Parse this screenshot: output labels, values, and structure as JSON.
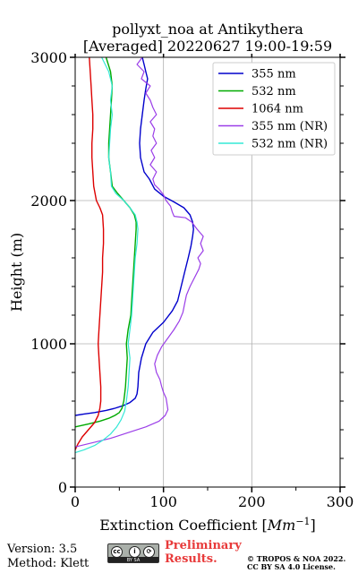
{
  "chart_data": {
    "type": "line",
    "title": [
      "pollyxt_noa at Antikythera",
      "[Averaged] 20220627 19:00-19:59"
    ],
    "xlabel": "Extinction Coefficient [",
    "xlabel_unit": "Mm",
    "xlabel_exp": "−1",
    "xlabel_end": "]",
    "ylabel": "Height (m)",
    "xlim": [
      0,
      300
    ],
    "ylim": [
      0,
      3000
    ],
    "xticks": [
      0,
      100,
      200,
      300
    ],
    "yticks": [
      0,
      1000,
      2000,
      3000
    ],
    "grid": true,
    "legend_position": "top-right",
    "series": [
      {
        "name": "355 nm",
        "color": "#0000cc",
        "width": 1.4,
        "points": [
          [
            0,
            500
          ],
          [
            10,
            510
          ],
          [
            22,
            520
          ],
          [
            35,
            535
          ],
          [
            45,
            550
          ],
          [
            55,
            570
          ],
          [
            62,
            590
          ],
          [
            68,
            620
          ],
          [
            70,
            650
          ],
          [
            71,
            700
          ],
          [
            72,
            800
          ],
          [
            75,
            900
          ],
          [
            80,
            1000
          ],
          [
            88,
            1080
          ],
          [
            100,
            1150
          ],
          [
            110,
            1230
          ],
          [
            116,
            1300
          ],
          [
            120,
            1400
          ],
          [
            124,
            1500
          ],
          [
            128,
            1600
          ],
          [
            131,
            1680
          ],
          [
            133,
            1750
          ],
          [
            134,
            1800
          ],
          [
            133,
            1850
          ],
          [
            130,
            1900
          ],
          [
            123,
            1950
          ],
          [
            112,
            1990
          ],
          [
            100,
            2030
          ],
          [
            90,
            2080
          ],
          [
            84,
            2150
          ],
          [
            78,
            2200
          ],
          [
            74,
            2300
          ],
          [
            73,
            2400
          ],
          [
            74,
            2500
          ],
          [
            76,
            2600
          ],
          [
            78,
            2700
          ],
          [
            80,
            2780
          ],
          [
            82,
            2850
          ],
          [
            80,
            2900
          ],
          [
            78,
            2950
          ],
          [
            76,
            3000
          ]
        ]
      },
      {
        "name": "532 nm",
        "color": "#00aa00",
        "width": 1.4,
        "points": [
          [
            0,
            420
          ],
          [
            15,
            440
          ],
          [
            28,
            460
          ],
          [
            38,
            480
          ],
          [
            45,
            500
          ],
          [
            50,
            520
          ],
          [
            53,
            550
          ],
          [
            55,
            600
          ],
          [
            56,
            650
          ],
          [
            57,
            700
          ],
          [
            58,
            800
          ],
          [
            59,
            900
          ],
          [
            58,
            1000
          ],
          [
            60,
            1100
          ],
          [
            63,
            1200
          ],
          [
            64,
            1300
          ],
          [
            65,
            1400
          ],
          [
            66,
            1500
          ],
          [
            67,
            1600
          ],
          [
            68,
            1700
          ],
          [
            69,
            1800
          ],
          [
            69,
            1850
          ],
          [
            67,
            1900
          ],
          [
            62,
            1950
          ],
          [
            55,
            2000
          ],
          [
            48,
            2050
          ],
          [
            42,
            2100
          ],
          [
            40,
            2200
          ],
          [
            38,
            2300
          ],
          [
            38,
            2400
          ],
          [
            39,
            2500
          ],
          [
            40,
            2600
          ],
          [
            41,
            2700
          ],
          [
            42,
            2800
          ],
          [
            40,
            2900
          ],
          [
            35,
            3000
          ]
        ]
      },
      {
        "name": "1064 nm",
        "color": "#dd0000",
        "width": 1.4,
        "points": [
          [
            0,
            260
          ],
          [
            3,
            300
          ],
          [
            8,
            350
          ],
          [
            15,
            400
          ],
          [
            22,
            450
          ],
          [
            26,
            500
          ],
          [
            28,
            550
          ],
          [
            29,
            600
          ],
          [
            29,
            700
          ],
          [
            28,
            800
          ],
          [
            27,
            900
          ],
          [
            26,
            1000
          ],
          [
            27,
            1100
          ],
          [
            28,
            1200
          ],
          [
            29,
            1300
          ],
          [
            30,
            1400
          ],
          [
            31,
            1500
          ],
          [
            31,
            1600
          ],
          [
            32,
            1700
          ],
          [
            32,
            1800
          ],
          [
            31,
            1900
          ],
          [
            28,
            1950
          ],
          [
            24,
            2000
          ],
          [
            21,
            2100
          ],
          [
            20,
            2200
          ],
          [
            19,
            2300
          ],
          [
            19,
            2400
          ],
          [
            20,
            2500
          ],
          [
            20,
            2600
          ],
          [
            19,
            2700
          ],
          [
            18,
            2800
          ],
          [
            17,
            2900
          ],
          [
            16,
            3000
          ]
        ]
      },
      {
        "name": "355 nm (NR)",
        "color": "#9b3ee8",
        "width": 1.2,
        "points": [
          [
            0,
            280
          ],
          [
            20,
            310
          ],
          [
            40,
            340
          ],
          [
            60,
            380
          ],
          [
            80,
            420
          ],
          [
            95,
            460
          ],
          [
            102,
            500
          ],
          [
            105,
            540
          ],
          [
            104,
            580
          ],
          [
            103,
            620
          ],
          [
            100,
            660
          ],
          [
            98,
            700
          ],
          [
            96,
            750
          ],
          [
            92,
            800
          ],
          [
            90,
            860
          ],
          [
            93,
            920
          ],
          [
            98,
            980
          ],
          [
            105,
            1040
          ],
          [
            112,
            1100
          ],
          [
            118,
            1160
          ],
          [
            122,
            1220
          ],
          [
            124,
            1280
          ],
          [
            126,
            1340
          ],
          [
            130,
            1400
          ],
          [
            135,
            1460
          ],
          [
            140,
            1520
          ],
          [
            142,
            1560
          ],
          [
            139,
            1600
          ],
          [
            145,
            1650
          ],
          [
            142,
            1700
          ],
          [
            145,
            1750
          ],
          [
            138,
            1800
          ],
          [
            132,
            1850
          ],
          [
            125,
            1880
          ],
          [
            112,
            1890
          ],
          [
            110,
            1920
          ],
          [
            108,
            1960
          ],
          [
            103,
            2000
          ],
          [
            100,
            2040
          ],
          [
            95,
            2080
          ],
          [
            90,
            2110
          ],
          [
            88,
            2150
          ],
          [
            92,
            2200
          ],
          [
            85,
            2250
          ],
          [
            90,
            2300
          ],
          [
            86,
            2350
          ],
          [
            92,
            2400
          ],
          [
            88,
            2450
          ],
          [
            90,
            2500
          ],
          [
            85,
            2550
          ],
          [
            92,
            2600
          ],
          [
            88,
            2650
          ],
          [
            85,
            2700
          ],
          [
            80,
            2750
          ],
          [
            85,
            2800
          ],
          [
            75,
            2850
          ],
          [
            78,
            2900
          ],
          [
            70,
            2950
          ],
          [
            76,
            3000
          ]
        ]
      },
      {
        "name": "532 nm (NR)",
        "color": "#33e8d6",
        "width": 1.2,
        "points": [
          [
            0,
            240
          ],
          [
            10,
            260
          ],
          [
            22,
            290
          ],
          [
            32,
            330
          ],
          [
            40,
            370
          ],
          [
            47,
            420
          ],
          [
            52,
            470
          ],
          [
            56,
            530
          ],
          [
            58,
            600
          ],
          [
            60,
            700
          ],
          [
            61,
            800
          ],
          [
            62,
            900
          ],
          [
            60,
            1000
          ],
          [
            62,
            1100
          ],
          [
            64,
            1200
          ],
          [
            65,
            1300
          ],
          [
            66,
            1400
          ],
          [
            67,
            1500
          ],
          [
            68,
            1600
          ],
          [
            70,
            1700
          ],
          [
            71,
            1800
          ],
          [
            70,
            1850
          ],
          [
            68,
            1900
          ],
          [
            62,
            1950
          ],
          [
            55,
            2000
          ],
          [
            46,
            2050
          ],
          [
            41,
            2100
          ],
          [
            40,
            2200
          ],
          [
            38,
            2300
          ],
          [
            39,
            2400
          ],
          [
            40,
            2500
          ],
          [
            42,
            2600
          ],
          [
            40,
            2700
          ],
          [
            42,
            2800
          ],
          [
            38,
            2900
          ],
          [
            30,
            3000
          ]
        ]
      }
    ]
  },
  "footer": {
    "version": "Version: 3.5",
    "method": "Method: Klett",
    "preliminary_1": "Preliminary",
    "preliminary_2": "Results.",
    "copyright_1": "© TROPOS & NOA 2022.",
    "copyright_2": "CC BY SA 4.0 License."
  },
  "license_badge": {
    "cc_symbol": "cc",
    "by_symbol": "i",
    "sa_symbol": "⟳",
    "label": "BY SA"
  }
}
